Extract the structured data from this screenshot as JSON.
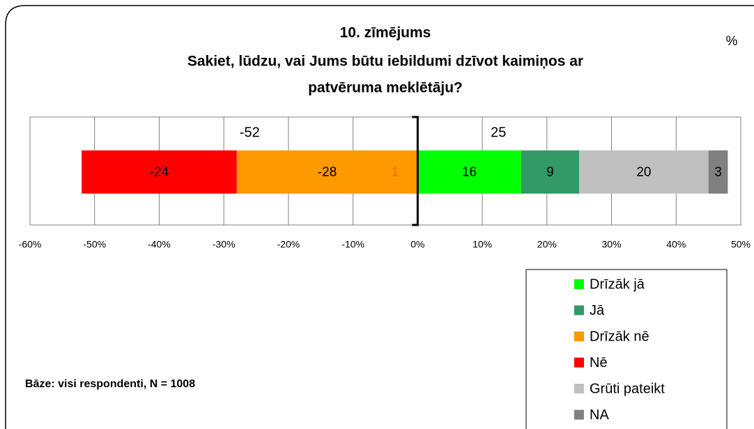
{
  "chart_data": {
    "type": "bar",
    "orientation": "horizontal",
    "title": [
      "10. zīmējums",
      "Sakiet, lūdzu, vai Jums būtu iebildumi dzīvot kaimiņos ar",
      "patvēruma meklētāju?"
    ],
    "unit_label": "%",
    "footnote": "Bāze: visi respondenti, N = 1008",
    "series": [
      {
        "name": "Drīzāk jā",
        "color": "#00ff00",
        "values": [
          16
        ]
      },
      {
        "name": "Jā",
        "color": "#339966",
        "values": [
          9
        ]
      },
      {
        "name": "Drīzāk nē",
        "color": "#ff9900",
        "values": [
          -28
        ]
      },
      {
        "name": "Nē",
        "color": "#ff0000",
        "values": [
          -24
        ]
      },
      {
        "name": "Grūti pateikt",
        "color": "#c0c0c0",
        "values": [
          20
        ]
      },
      {
        "name": "NA",
        "color": "#808080",
        "values": [
          3
        ]
      }
    ],
    "totals": [
      -52,
      25
    ],
    "inner_note": "1",
    "xlim": [
      -60,
      50
    ],
    "xticks": [
      {
        "value": -60,
        "label": "-60%"
      },
      {
        "value": -50,
        "label": "-50%"
      },
      {
        "value": -40,
        "label": "-40%"
      },
      {
        "value": -30,
        "label": "-30%"
      },
      {
        "value": -20,
        "label": "-20%"
      },
      {
        "value": -10,
        "label": "-10%"
      },
      {
        "value": 0,
        "label": "0%"
      },
      {
        "value": 10,
        "label": "10%"
      },
      {
        "value": 20,
        "label": "20%"
      },
      {
        "value": 30,
        "label": "30%"
      },
      {
        "value": 40,
        "label": "40%"
      },
      {
        "value": 50,
        "label": "50%"
      }
    ],
    "grid": true
  }
}
